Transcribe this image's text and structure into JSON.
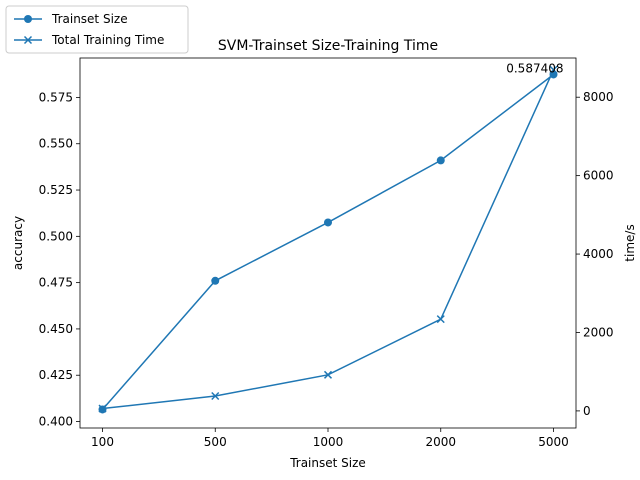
{
  "chart_data": {
    "type": "line",
    "title": "SVM-Trainset Size-Training Time",
    "xlabel": "Trainset Size",
    "ylabel_left": "accuracy",
    "ylabel_right": "time/s",
    "categories": [
      "100",
      "500",
      "1000",
      "2000",
      "5000"
    ],
    "ylim_left": [
      0.3965,
      0.5963
    ],
    "ylim_right": [
      -436,
      9000
    ],
    "yticks_left": [
      "0.400",
      "0.425",
      "0.450",
      "0.475",
      "0.500",
      "0.525",
      "0.550",
      "0.575"
    ],
    "yticks_left_values": [
      0.4,
      0.425,
      0.45,
      0.475,
      0.5,
      0.525,
      0.55,
      0.575
    ],
    "yticks_right": [
      "0",
      "2000",
      "4000",
      "6000",
      "8000"
    ],
    "yticks_right_values": [
      0,
      2000,
      4000,
      6000,
      8000
    ],
    "series": [
      {
        "name": "Trainset Size",
        "axis": "left",
        "marker": "circle",
        "values": [
          0.4065,
          0.476,
          0.5075,
          0.541,
          0.587408
        ]
      },
      {
        "name": "Total Training Time",
        "axis": "right",
        "marker": "x",
        "values": [
          60,
          380,
          920,
          2340,
          8700
        ]
      }
    ],
    "annotation": {
      "text": "0.587408",
      "category": "5000",
      "series": "Trainset Size"
    },
    "legend_position": "top-left",
    "grid": false,
    "color": "#1f77b4"
  }
}
